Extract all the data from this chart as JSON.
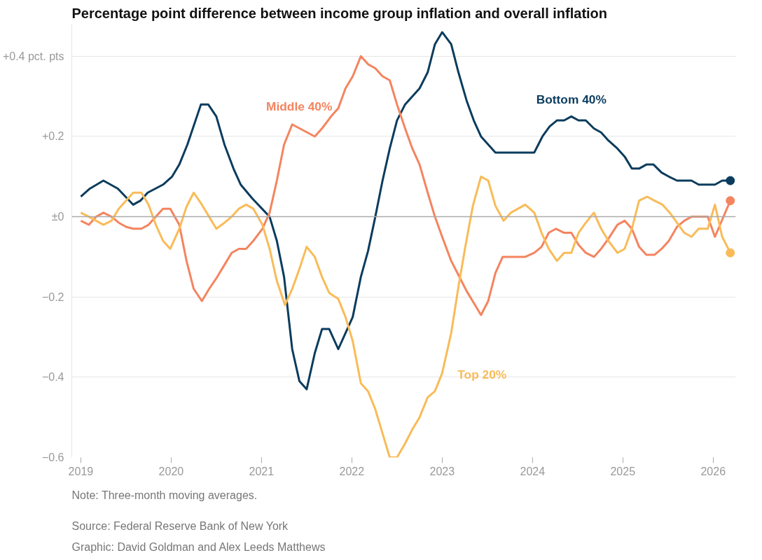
{
  "chart_data": {
    "type": "line",
    "title": "Percentage point difference between income group inflation and overall inflation",
    "xlim": [
      2018.9,
      2026.25
    ],
    "xticks": [
      2019,
      2020,
      2021,
      2022,
      2023,
      2024,
      2025,
      2026
    ],
    "ylim": [
      -0.6,
      0.48
    ],
    "yticks": [
      {
        "value": 0.4,
        "label": "+0.4 pct. pts"
      },
      {
        "value": 0.2,
        "label": "+0.2"
      },
      {
        "value": 0,
        "label": "±0"
      },
      {
        "value": -0.2,
        "label": "−0.2"
      },
      {
        "value": -0.4,
        "label": "−0.4"
      },
      {
        "value": -0.6,
        "label": "−0.6"
      }
    ],
    "grid": "y",
    "line_style": "solid",
    "marker": "none",
    "ref_lines": [
      {
        "axis": "y",
        "value": 0,
        "label": null,
        "color": "#aaaaaa"
      }
    ],
    "annotations": [
      "Note: Three-month moving averages.",
      "Source: Federal Reserve Bank of New York",
      "Graphic: David Goldman and Alex Leeds Matthews"
    ],
    "series": [
      {
        "name": "Bottom 40%",
        "color": "#0b3c5d",
        "x": [
          2019.0,
          2019.1,
          2019.25,
          2019.41,
          2019.58,
          2019.66,
          2019.74,
          2019.91,
          2020.01,
          2020.09,
          2020.18,
          2020.33,
          2020.41,
          2020.5,
          2020.59,
          2020.69,
          2020.77,
          2020.9,
          2021.09,
          2021.17,
          2021.25,
          2021.34,
          2021.42,
          2021.5,
          2021.59,
          2021.67,
          2021.75,
          2021.85,
          2021.93,
          2022.01,
          2022.1,
          2022.18,
          2022.26,
          2022.34,
          2022.42,
          2022.5,
          2022.59,
          2022.67,
          2022.75,
          2022.84,
          2022.92,
          2023.0,
          2023.1,
          2023.18,
          2023.27,
          2023.35,
          2023.43,
          2023.59,
          2024.02,
          2024.11,
          2024.19,
          2024.27,
          2024.35,
          2024.43,
          2024.51,
          2024.59,
          2024.68,
          2024.76,
          2024.84,
          2024.94,
          2025.02,
          2025.1,
          2025.18,
          2025.26,
          2025.34,
          2025.43,
          2025.51,
          2025.6,
          2025.76,
          2025.84,
          2026.02,
          2026.1,
          2026.19
        ],
        "values": [
          0.05,
          0.07,
          0.09,
          0.07,
          0.03,
          0.04,
          0.06,
          0.08,
          0.1,
          0.13,
          0.18,
          0.28,
          0.28,
          0.25,
          0.18,
          0.12,
          0.08,
          0.045,
          0.0,
          -0.06,
          -0.15,
          -0.33,
          -0.41,
          -0.43,
          -0.34,
          -0.28,
          -0.28,
          -0.33,
          -0.29,
          -0.25,
          -0.15,
          -0.085,
          0.0,
          0.09,
          0.17,
          0.24,
          0.28,
          0.3,
          0.32,
          0.36,
          0.43,
          0.46,
          0.43,
          0.36,
          0.29,
          0.24,
          0.2,
          0.16,
          0.16,
          0.2,
          0.225,
          0.24,
          0.24,
          0.25,
          0.24,
          0.24,
          0.22,
          0.21,
          0.19,
          0.17,
          0.15,
          0.12,
          0.12,
          0.13,
          0.13,
          0.11,
          0.1,
          0.09,
          0.09,
          0.08,
          0.08,
          0.09,
          0.09
        ]
      },
      {
        "name": "Middle 40%",
        "color": "#f4845f",
        "x": [
          2019.0,
          2019.09,
          2019.17,
          2019.25,
          2019.34,
          2019.42,
          2019.5,
          2019.58,
          2019.67,
          2019.75,
          2019.83,
          2019.91,
          2019.99,
          2020.09,
          2020.17,
          2020.25,
          2020.34,
          2020.42,
          2020.51,
          2020.59,
          2020.67,
          2020.75,
          2020.83,
          2020.91,
          2021.01,
          2021.09,
          2021.17,
          2021.25,
          2021.34,
          2021.59,
          2021.67,
          2021.77,
          2021.85,
          2021.93,
          2022.01,
          2022.1,
          2022.18,
          2022.26,
          2022.34,
          2022.42,
          2022.5,
          2022.59,
          2022.67,
          2022.75,
          2022.84,
          2022.92,
          2023.0,
          2023.1,
          2023.18,
          2023.27,
          2023.35,
          2023.43,
          2023.51,
          2023.59,
          2023.67,
          2023.92,
          2024.02,
          2024.1,
          2024.18,
          2024.26,
          2024.35,
          2024.43,
          2024.51,
          2024.59,
          2024.68,
          2024.76,
          2024.84,
          2024.94,
          2025.02,
          2025.1,
          2025.18,
          2025.26,
          2025.35,
          2025.43,
          2025.51,
          2025.6,
          2025.68,
          2025.76,
          2025.94,
          2026.02,
          2026.19
        ],
        "values": [
          -0.01,
          -0.02,
          0.0,
          0.01,
          0.0,
          -0.015,
          -0.025,
          -0.03,
          -0.03,
          -0.02,
          0.0,
          0.02,
          0.02,
          -0.02,
          -0.11,
          -0.18,
          -0.21,
          -0.18,
          -0.15,
          -0.12,
          -0.09,
          -0.08,
          -0.08,
          -0.06,
          -0.03,
          0.01,
          0.09,
          0.18,
          0.23,
          0.2,
          0.22,
          0.25,
          0.27,
          0.32,
          0.35,
          0.4,
          0.38,
          0.37,
          0.35,
          0.34,
          0.28,
          0.22,
          0.17,
          0.13,
          0.06,
          0.0,
          -0.05,
          -0.11,
          -0.145,
          -0.185,
          -0.215,
          -0.245,
          -0.21,
          -0.14,
          -0.1,
          -0.1,
          -0.09,
          -0.075,
          -0.04,
          -0.03,
          -0.04,
          -0.04,
          -0.07,
          -0.09,
          -0.1,
          -0.08,
          -0.055,
          -0.02,
          -0.01,
          -0.03,
          -0.075,
          -0.095,
          -0.095,
          -0.08,
          -0.06,
          -0.025,
          -0.01,
          0.0,
          0.0,
          -0.05,
          0.04
        ]
      },
      {
        "name": "Top 20%",
        "color": "#f9bb58",
        "x": [
          2019.0,
          2019.09,
          2019.17,
          2019.25,
          2019.34,
          2019.42,
          2019.5,
          2019.58,
          2019.67,
          2019.75,
          2019.83,
          2019.91,
          2019.99,
          2020.09,
          2020.17,
          2020.25,
          2020.34,
          2020.42,
          2020.5,
          2020.59,
          2020.67,
          2020.75,
          2020.83,
          2020.91,
          2021.01,
          2021.09,
          2021.17,
          2021.26,
          2021.34,
          2021.42,
          2021.5,
          2021.59,
          2021.67,
          2021.75,
          2021.85,
          2021.93,
          2022.01,
          2022.1,
          2022.18,
          2022.26,
          2022.34,
          2022.42,
          2022.5,
          2022.59,
          2022.67,
          2022.75,
          2022.84,
          2022.92,
          2023.0,
          2023.1,
          2023.18,
          2023.26,
          2023.34,
          2023.43,
          2023.51,
          2023.59,
          2023.68,
          2023.76,
          2023.92,
          2024.02,
          2024.1,
          2024.18,
          2024.27,
          2024.35,
          2024.43,
          2024.51,
          2024.59,
          2024.68,
          2024.76,
          2024.84,
          2024.94,
          2025.02,
          2025.1,
          2025.18,
          2025.27,
          2025.35,
          2025.44,
          2025.52,
          2025.6,
          2025.68,
          2025.76,
          2025.84,
          2025.94,
          2026.02,
          2026.1,
          2026.19
        ],
        "values": [
          0.01,
          0.0,
          -0.01,
          -0.02,
          -0.01,
          0.02,
          0.04,
          0.06,
          0.06,
          0.03,
          -0.02,
          -0.06,
          -0.08,
          -0.03,
          0.025,
          0.06,
          0.03,
          0.0,
          -0.03,
          -0.015,
          0.0,
          0.02,
          0.03,
          0.02,
          -0.02,
          -0.08,
          -0.16,
          -0.22,
          -0.18,
          -0.13,
          -0.075,
          -0.1,
          -0.15,
          -0.19,
          -0.205,
          -0.25,
          -0.31,
          -0.415,
          -0.435,
          -0.48,
          -0.54,
          -0.6,
          -0.6,
          -0.565,
          -0.53,
          -0.5,
          -0.45,
          -0.435,
          -0.39,
          -0.29,
          -0.175,
          -0.07,
          0.027,
          0.1,
          0.09,
          0.027,
          -0.01,
          0.01,
          0.03,
          0.01,
          -0.04,
          -0.08,
          -0.11,
          -0.09,
          -0.09,
          -0.04,
          -0.015,
          0.01,
          -0.03,
          -0.06,
          -0.09,
          -0.08,
          -0.03,
          0.04,
          0.05,
          0.04,
          0.03,
          0.01,
          -0.015,
          -0.04,
          -0.05,
          -0.03,
          -0.03,
          0.03,
          -0.05,
          -0.09
        ]
      }
    ]
  }
}
